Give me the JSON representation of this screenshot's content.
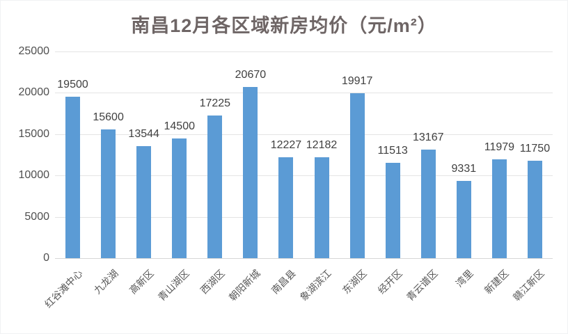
{
  "chart_data": {
    "type": "bar",
    "title": "南昌12月各区域新房均价（元/m²）",
    "categories": [
      "红谷滩中心",
      "九龙湖",
      "高新区",
      "青山湖区",
      "西湖区",
      "朝阳新城",
      "南昌县",
      "象湖滨江",
      "东湖区",
      "经开区",
      "青云谱区",
      "湾里",
      "新建区",
      "赣江新区"
    ],
    "values": [
      19500,
      15600,
      13544,
      14500,
      17225,
      20670,
      12227,
      12182,
      19917,
      11513,
      13167,
      9331,
      11979,
      11750
    ],
    "value_labels": [
      "19500",
      "15600",
      "13544",
      "14500",
      "17225",
      "20670",
      "12227",
      "12182",
      "19917",
      "11513",
      "13167",
      "9331",
      "11979",
      "11750"
    ],
    "xlabel": "",
    "ylabel": "",
    "ylim": [
      0,
      25000
    ],
    "yticks": [
      0,
      5000,
      10000,
      15000,
      20000,
      25000
    ],
    "ytick_labels": [
      "0",
      "5000",
      "10000",
      "15000",
      "20000",
      "25000"
    ],
    "grid": true,
    "legend": "none",
    "colors": {
      "bar": "#5b9bd5",
      "title_text": "#6e6565",
      "value_label_text": "#3f3f3f",
      "axis_text": "#585858",
      "gridline": "#e4e4e4"
    }
  }
}
